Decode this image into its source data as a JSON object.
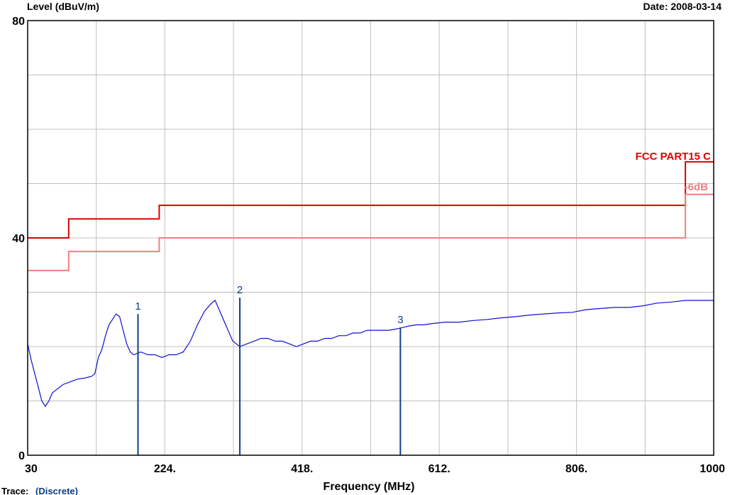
{
  "chart_data": {
    "type": "line",
    "title_left": "Level (dBuV/m)",
    "title_right": "Date: 2008-03-14",
    "xlabel": "Frequency (MHz)",
    "ylabel": "Level (dBuV/m)",
    "xlim": [
      30,
      1000
    ],
    "ylim": [
      0,
      80
    ],
    "x_ticks": [
      "30",
      "224.",
      "418.",
      "612.",
      "806.",
      "1000"
    ],
    "x_tick_values": [
      30,
      224,
      418,
      612,
      806,
      1000
    ],
    "y_ticks": [
      "0",
      "40",
      "80"
    ],
    "y_tick_values": [
      0,
      40,
      80
    ],
    "grid": true,
    "colors": {
      "limit": "#e00000",
      "margin": "#f08080",
      "trace": "#1010d0",
      "marker": "#0d3d8a",
      "grid": "#c0c0c0"
    },
    "series": [
      {
        "name": "FCC PART15 C",
        "color": "#e00000",
        "points": [
          [
            30,
            40
          ],
          [
            88,
            40
          ],
          [
            88,
            43.5
          ],
          [
            216,
            43.5
          ],
          [
            216,
            46
          ],
          [
            960,
            46
          ],
          [
            960,
            54
          ],
          [
            1000,
            54
          ]
        ]
      },
      {
        "name": "-6dB",
        "color": "#f08080",
        "points": [
          [
            30,
            34
          ],
          [
            88,
            34
          ],
          [
            88,
            37.5
          ],
          [
            216,
            37.5
          ],
          [
            216,
            40
          ],
          [
            960,
            40
          ],
          [
            960,
            48
          ],
          [
            1000,
            48
          ]
        ]
      },
      {
        "name": "trace",
        "color": "#1010d0",
        "points": [
          [
            30,
            20.5
          ],
          [
            35,
            17.5
          ],
          [
            40,
            15
          ],
          [
            45,
            12.5
          ],
          [
            50,
            10
          ],
          [
            55,
            9
          ],
          [
            60,
            10
          ],
          [
            65,
            11.5
          ],
          [
            70,
            12
          ],
          [
            80,
            13
          ],
          [
            90,
            13.5
          ],
          [
            100,
            14
          ],
          [
            110,
            14.2
          ],
          [
            120,
            14.5
          ],
          [
            125,
            15
          ],
          [
            130,
            18
          ],
          [
            135,
            19.5
          ],
          [
            140,
            22
          ],
          [
            145,
            24
          ],
          [
            150,
            25
          ],
          [
            155,
            26
          ],
          [
            160,
            25.5
          ],
          [
            165,
            23
          ],
          [
            170,
            20.5
          ],
          [
            175,
            19
          ],
          [
            180,
            18.5
          ],
          [
            190,
            19
          ],
          [
            200,
            18.5
          ],
          [
            210,
            18.5
          ],
          [
            220,
            18
          ],
          [
            230,
            18.5
          ],
          [
            240,
            18.5
          ],
          [
            250,
            19
          ],
          [
            260,
            21
          ],
          [
            270,
            24
          ],
          [
            280,
            26.5
          ],
          [
            290,
            28
          ],
          [
            295,
            28.5
          ],
          [
            300,
            27
          ],
          [
            310,
            24
          ],
          [
            320,
            21
          ],
          [
            330,
            20
          ],
          [
            340,
            20.5
          ],
          [
            350,
            21
          ],
          [
            360,
            21.5
          ],
          [
            370,
            21.5
          ],
          [
            380,
            21
          ],
          [
            390,
            21
          ],
          [
            400,
            20.5
          ],
          [
            410,
            20
          ],
          [
            420,
            20.5
          ],
          [
            430,
            21
          ],
          [
            440,
            21
          ],
          [
            450,
            21.5
          ],
          [
            460,
            21.5
          ],
          [
            470,
            22
          ],
          [
            480,
            22
          ],
          [
            490,
            22.5
          ],
          [
            500,
            22.5
          ],
          [
            510,
            23
          ],
          [
            520,
            23
          ],
          [
            530,
            23
          ],
          [
            540,
            23
          ],
          [
            550,
            23.2
          ],
          [
            560,
            23.5
          ],
          [
            570,
            23.8
          ],
          [
            580,
            24
          ],
          [
            590,
            24
          ],
          [
            600,
            24.2
          ],
          [
            620,
            24.5
          ],
          [
            640,
            24.5
          ],
          [
            660,
            24.8
          ],
          [
            680,
            25
          ],
          [
            700,
            25.3
          ],
          [
            720,
            25.5
          ],
          [
            740,
            25.8
          ],
          [
            760,
            26
          ],
          [
            780,
            26.2
          ],
          [
            800,
            26.3
          ],
          [
            820,
            26.8
          ],
          [
            840,
            27
          ],
          [
            860,
            27.2
          ],
          [
            880,
            27.2
          ],
          [
            900,
            27.5
          ],
          [
            920,
            28
          ],
          [
            940,
            28.2
          ],
          [
            960,
            28.5
          ],
          [
            980,
            28.5
          ],
          [
            1000,
            28.5
          ]
        ]
      }
    ],
    "markers": [
      {
        "label": "1",
        "x": 186,
        "y": 26
      },
      {
        "label": "2",
        "x": 330,
        "y": 29
      },
      {
        "label": "3",
        "x": 557,
        "y": 23.5
      }
    ],
    "legend_labels": [
      "FCC PART15 C",
      "-6dB"
    ],
    "footer_left": "Trace:",
    "footer_value": "(Discrete)"
  }
}
